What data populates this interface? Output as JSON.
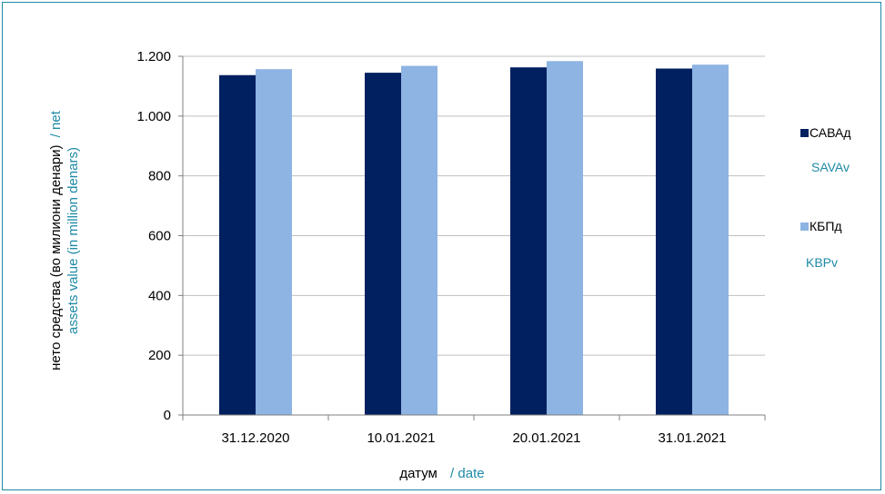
{
  "chart_data": {
    "type": "bar",
    "categories": [
      "31.12.2020",
      "10.01.2021",
      "20.01.2021",
      "31.01.2021"
    ],
    "series": [
      {
        "name": "САВАд",
        "name_en": "SAVAv",
        "color": "#002060",
        "values": [
          1137,
          1145,
          1163,
          1159
        ]
      },
      {
        "name": "КБПд",
        "name_en": "KBPv",
        "color": "#8DB4E2",
        "values": [
          1157,
          1168,
          1184,
          1172
        ]
      }
    ],
    "y_ticks": [
      0,
      200,
      400,
      600,
      800,
      1000,
      1200
    ],
    "y_tick_labels": [
      "0",
      "200",
      "400",
      "600",
      "800",
      "1.000",
      "1.200"
    ],
    "ylim": [
      0,
      1200
    ],
    "grid": true,
    "legend_position": "right",
    "ylabel": {
      "line1_mk": "нето средства (во милиони денари)",
      "line1_en": "/ net",
      "line2_en": "assets value  (in million  denars)"
    },
    "xlabel": {
      "mk": "датум",
      "en": "/ date"
    },
    "secondary_text_color": "#1e8aa6"
  }
}
